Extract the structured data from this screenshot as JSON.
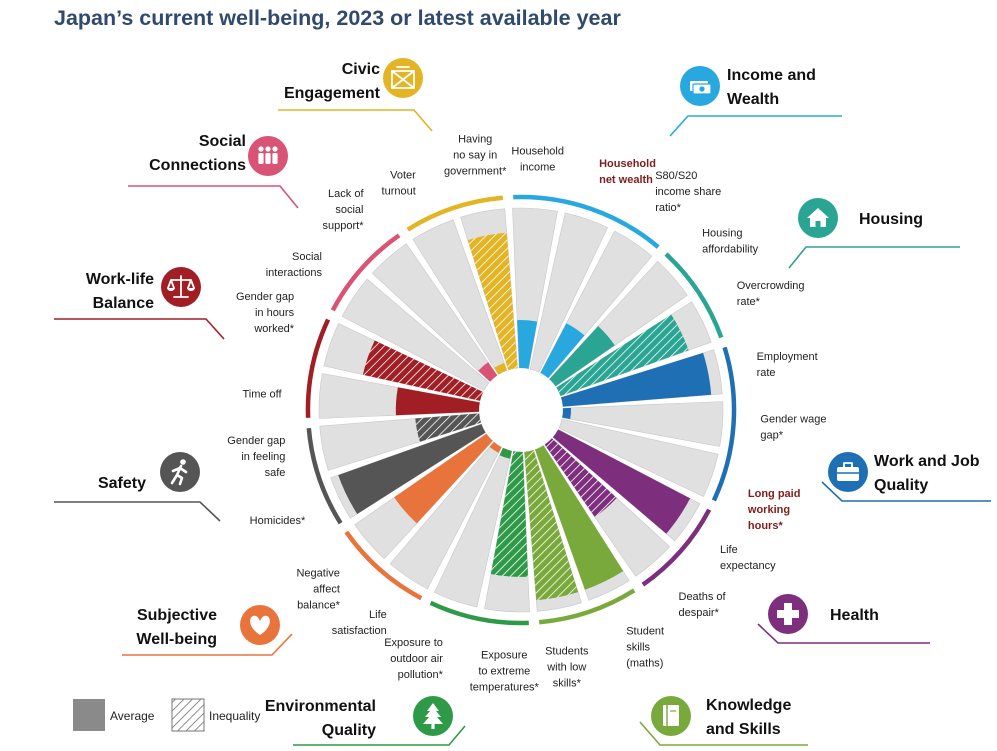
{
  "title": "Japan’s current well-being, 2023 or latest available year",
  "legend": {
    "average": "Average",
    "inequality": "Inequality"
  },
  "colors": {
    "background_bar": "#e0e0e0",
    "income_wealth": "#29a8e0",
    "housing": "#2aa594",
    "work_job_quality": "#1f6fb4",
    "health": "#7d2f7e",
    "knowledge_skills": "#79a93a",
    "environmental_quality": "#2e9a48",
    "subjective_wellbeing": "#e8743b",
    "safety": "#555555",
    "work_life_balance": "#a11f24",
    "social_connections": "#d85374",
    "civic_engagement": "#e3b424",
    "highlight_label": "#7f1d1d"
  },
  "dimensions": [
    {
      "key": "income_wealth",
      "name": [
        "Income and",
        "Wealth"
      ],
      "icon": "banknotes-icon"
    },
    {
      "key": "housing",
      "name": [
        "Housing"
      ],
      "icon": "house-icon"
    },
    {
      "key": "work_job_quality",
      "name": [
        "Work and Job",
        "Quality"
      ],
      "icon": "briefcase-icon"
    },
    {
      "key": "health",
      "name": [
        "Health"
      ],
      "icon": "medical-cross-icon"
    },
    {
      "key": "knowledge_skills",
      "name": [
        "Knowledge",
        "and Skills"
      ],
      "icon": "book-icon"
    },
    {
      "key": "environmental_quality",
      "name": [
        "Environmental",
        "Quality"
      ],
      "icon": "tree-icon"
    },
    {
      "key": "subjective_wellbeing",
      "name": [
        "Subjective",
        "Well-being"
      ],
      "icon": "heart-icon"
    },
    {
      "key": "safety",
      "name": [
        "Safety"
      ],
      "icon": "running-person-icon"
    },
    {
      "key": "work_life_balance",
      "name": [
        "Work-life",
        "Balance"
      ],
      "icon": "scales-icon"
    },
    {
      "key": "social_connections",
      "name": [
        "Social",
        "Connections"
      ],
      "icon": "people-icon"
    },
    {
      "key": "civic_engagement",
      "name": [
        "Civic",
        "Engagement"
      ],
      "icon": "ballot-box-icon"
    }
  ],
  "chart_data": {
    "type": "radial bar",
    "title": "Japan’s current well-being, 2023 or latest available year",
    "value_scale": [
      0,
      1
    ],
    "indicators": [
      {
        "label": [
          "Household",
          "income"
        ],
        "dimension": "income_wealth",
        "kind": "average",
        "value": 0.3,
        "highlight": false
      },
      {
        "label": [
          "Household",
          "net wealth"
        ],
        "dimension": "income_wealth",
        "kind": "average",
        "value": null,
        "highlight": true
      },
      {
        "label": [
          "S80/S20",
          "income share",
          "ratio*"
        ],
        "dimension": "income_wealth",
        "kind": "average",
        "value": 0.35,
        "highlight": false
      },
      {
        "label": [
          "Housing",
          "affordability"
        ],
        "dimension": "housing",
        "kind": "average",
        "value": 0.45,
        "highlight": false
      },
      {
        "label": [
          "Overcrowding",
          "rate*"
        ],
        "dimension": "housing",
        "kind": "inequality",
        "value": 0.85,
        "highlight": false
      },
      {
        "label": [
          "Employment",
          "rate"
        ],
        "dimension": "work_job_quality",
        "kind": "average",
        "value": 0.93,
        "highlight": false
      },
      {
        "label": [
          "Gender wage",
          "gap*"
        ],
        "dimension": "work_job_quality",
        "kind": "average",
        "value": 0.05,
        "highlight": false
      },
      {
        "label": [
          "Long paid",
          "working",
          "hours*"
        ],
        "dimension": "work_job_quality",
        "kind": "average",
        "value": null,
        "highlight": true
      },
      {
        "label": [
          "Life",
          "expectancy"
        ],
        "dimension": "health",
        "kind": "average",
        "value": 0.93,
        "highlight": false
      },
      {
        "label": [
          "Deaths of",
          "despair*"
        ],
        "dimension": "health",
        "kind": "inequality",
        "value": 0.55,
        "highlight": false
      },
      {
        "label": [
          "Student",
          "skills",
          "(maths)"
        ],
        "dimension": "knowledge_skills",
        "kind": "average",
        "value": 0.93,
        "highlight": false
      },
      {
        "label": [
          "Students",
          "with low",
          "skills*"
        ],
        "dimension": "knowledge_skills",
        "kind": "inequality",
        "value": 0.93,
        "highlight": false
      },
      {
        "label": [
          "Exposure",
          "to extreme",
          "temperatures*"
        ],
        "dimension": "environmental_quality",
        "kind": "inequality",
        "value": 0.78,
        "highlight": false
      },
      {
        "label": [
          "Exposure to",
          "outdoor air",
          "pollution*"
        ],
        "dimension": "environmental_quality",
        "kind": "average",
        "value": 0.05,
        "highlight": false
      },
      {
        "label": [
          "Life",
          "satisfaction"
        ],
        "dimension": "subjective_wellbeing",
        "kind": "average",
        "value": 0.04,
        "highlight": false
      },
      {
        "label": [
          "Negative",
          "affect",
          "balance*"
        ],
        "dimension": "subjective_wellbeing",
        "kind": "average",
        "value": 0.7,
        "highlight": false
      },
      {
        "label": [
          "Homicides*"
        ],
        "dimension": "safety",
        "kind": "average",
        "value": 0.95,
        "highlight": false
      },
      {
        "label": [
          "Gender gap",
          "in feeling",
          "safe"
        ],
        "dimension": "safety",
        "kind": "inequality",
        "value": 0.4,
        "highlight": false
      },
      {
        "label": [
          "Time off"
        ],
        "dimension": "work_life_balance",
        "kind": "average",
        "value": 0.52,
        "highlight": false
      },
      {
        "label": [
          "Gender gap",
          "in hours",
          "worked*"
        ],
        "dimension": "work_life_balance",
        "kind": "inequality",
        "value": 0.75,
        "highlight": false
      },
      {
        "label": [
          "Social",
          "interactions"
        ],
        "dimension": "social_connections",
        "kind": "average",
        "value": null,
        "highlight": false
      },
      {
        "label": [
          "Lack of",
          "social",
          "support*"
        ],
        "dimension": "social_connections",
        "kind": "average",
        "value": 0.1,
        "highlight": false
      },
      {
        "label": [
          "Voter",
          "turnout"
        ],
        "dimension": "civic_engagement",
        "kind": "average",
        "value": 0.05,
        "highlight": false
      },
      {
        "label": [
          "Having",
          "no say in",
          "government*"
        ],
        "dimension": "civic_engagement",
        "kind": "inequality",
        "value": 0.85,
        "highlight": false
      }
    ]
  }
}
